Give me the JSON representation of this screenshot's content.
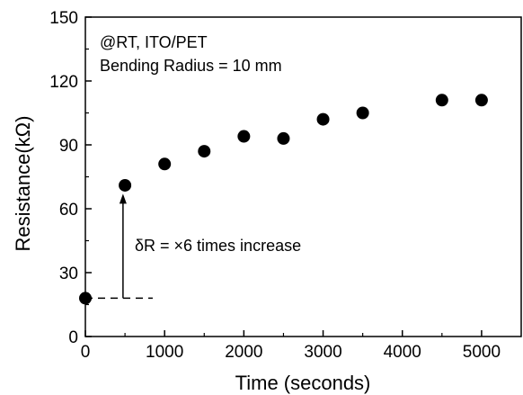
{
  "chart_data": {
    "type": "scatter",
    "xlabel": "Time (seconds)",
    "ylabel": "Resistance(kΩ)",
    "xlim": [
      0,
      5500
    ],
    "ylim": [
      0,
      150
    ],
    "x_ticks": [
      0,
      1000,
      2000,
      3000,
      4000,
      5000
    ],
    "y_ticks": [
      0,
      30,
      60,
      90,
      120,
      150
    ],
    "grid": false,
    "legend": "none",
    "marker_color": "#000000",
    "series": [
      {
        "x": [
          0,
          500,
          1000,
          1500,
          2000,
          2500,
          3000,
          3500,
          4500,
          5000
        ],
        "y": [
          18,
          71,
          81,
          87,
          94,
          93,
          102,
          105,
          111,
          111
        ]
      }
    ],
    "annotations": {
      "condition_line1": "@RT,  ITO/PET",
      "condition_line2": "Bending Radius = 10 mm",
      "increase_label": "δR = ×6 times increase",
      "baseline_dashed": {
        "x_from": 0,
        "x_to": 850,
        "y": 18
      },
      "arrow": {
        "x": 475,
        "y_from": 18,
        "y_to": 67
      }
    }
  }
}
